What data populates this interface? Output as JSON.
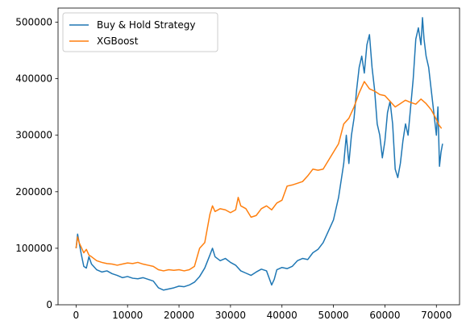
{
  "chart_data": {
    "type": "line",
    "title": "",
    "xlabel": "",
    "ylabel": "",
    "xlim": [
      -3500,
      74500
    ],
    "ylim": [
      0,
      525000
    ],
    "xticks": [
      0,
      10000,
      20000,
      30000,
      40000,
      50000,
      60000,
      70000
    ],
    "xtick_labels": [
      "0",
      "10000",
      "20000",
      "30000",
      "40000",
      "50000",
      "60000",
      "70000"
    ],
    "yticks": [
      0,
      100000,
      200000,
      300000,
      400000,
      500000
    ],
    "ytick_labels": [
      "0",
      "100000",
      "200000",
      "300000",
      "400000",
      "500000"
    ],
    "grid": false,
    "legend_position": "upper-left",
    "series": [
      {
        "name": "Buy & Hold Strategy",
        "color": "#1f77b4",
        "points": [
          [
            0,
            100000
          ],
          [
            300,
            125000
          ],
          [
            600,
            110000
          ],
          [
            1000,
            90000
          ],
          [
            1500,
            68000
          ],
          [
            2000,
            65000
          ],
          [
            2500,
            85000
          ],
          [
            3000,
            72000
          ],
          [
            4000,
            62000
          ],
          [
            5000,
            58000
          ],
          [
            6000,
            60000
          ],
          [
            7000,
            55000
          ],
          [
            8000,
            52000
          ],
          [
            9000,
            48000
          ],
          [
            10000,
            50000
          ],
          [
            11000,
            47000
          ],
          [
            12000,
            46000
          ],
          [
            13000,
            48000
          ],
          [
            14000,
            45000
          ],
          [
            15000,
            42000
          ],
          [
            16000,
            30000
          ],
          [
            17000,
            26000
          ],
          [
            18000,
            28000
          ],
          [
            19000,
            30000
          ],
          [
            20000,
            33000
          ],
          [
            21000,
            32000
          ],
          [
            22000,
            35000
          ],
          [
            23000,
            40000
          ],
          [
            24000,
            50000
          ],
          [
            25000,
            65000
          ],
          [
            26000,
            88000
          ],
          [
            26500,
            100000
          ],
          [
            27000,
            85000
          ],
          [
            28000,
            78000
          ],
          [
            29000,
            82000
          ],
          [
            30000,
            75000
          ],
          [
            31000,
            70000
          ],
          [
            32000,
            60000
          ],
          [
            33000,
            56000
          ],
          [
            34000,
            52000
          ],
          [
            35000,
            58000
          ],
          [
            36000,
            63000
          ],
          [
            37000,
            60000
          ],
          [
            38000,
            35000
          ],
          [
            38500,
            45000
          ],
          [
            39000,
            62000
          ],
          [
            40000,
            66000
          ],
          [
            41000,
            64000
          ],
          [
            42000,
            68000
          ],
          [
            43000,
            78000
          ],
          [
            44000,
            82000
          ],
          [
            45000,
            80000
          ],
          [
            46000,
            92000
          ],
          [
            47000,
            98000
          ],
          [
            48000,
            110000
          ],
          [
            49000,
            130000
          ],
          [
            50000,
            150000
          ],
          [
            51000,
            190000
          ],
          [
            52000,
            250000
          ],
          [
            52500,
            300000
          ],
          [
            53000,
            250000
          ],
          [
            53500,
            300000
          ],
          [
            54000,
            330000
          ],
          [
            54500,
            380000
          ],
          [
            55000,
            420000
          ],
          [
            55500,
            440000
          ],
          [
            56000,
            410000
          ],
          [
            56500,
            460000
          ],
          [
            57000,
            478000
          ],
          [
            57500,
            420000
          ],
          [
            58000,
            380000
          ],
          [
            58500,
            320000
          ],
          [
            59000,
            300000
          ],
          [
            59500,
            260000
          ],
          [
            60000,
            290000
          ],
          [
            60500,
            340000
          ],
          [
            61000,
            360000
          ],
          [
            61500,
            320000
          ],
          [
            62000,
            240000
          ],
          [
            62500,
            225000
          ],
          [
            63000,
            250000
          ],
          [
            63500,
            290000
          ],
          [
            64000,
            320000
          ],
          [
            64500,
            300000
          ],
          [
            65000,
            350000
          ],
          [
            65500,
            400000
          ],
          [
            66000,
            470000
          ],
          [
            66500,
            490000
          ],
          [
            67000,
            460000
          ],
          [
            67300,
            508000
          ],
          [
            67600,
            470000
          ],
          [
            68000,
            440000
          ],
          [
            68500,
            420000
          ],
          [
            69000,
            380000
          ],
          [
            69500,
            340000
          ],
          [
            70000,
            300000
          ],
          [
            70300,
            350000
          ],
          [
            70600,
            245000
          ],
          [
            70900,
            270000
          ],
          [
            71200,
            285000
          ]
        ]
      },
      {
        "name": "XGBoost",
        "color": "#ff7f0e",
        "points": [
          [
            0,
            100000
          ],
          [
            300,
            120000
          ],
          [
            600,
            110000
          ],
          [
            1000,
            102000
          ],
          [
            1500,
            92000
          ],
          [
            2000,
            98000
          ],
          [
            2500,
            88000
          ],
          [
            3000,
            85000
          ],
          [
            4000,
            78000
          ],
          [
            5000,
            75000
          ],
          [
            6000,
            73000
          ],
          [
            7000,
            72000
          ],
          [
            8000,
            70000
          ],
          [
            9000,
            72000
          ],
          [
            10000,
            74000
          ],
          [
            11000,
            73000
          ],
          [
            12000,
            75000
          ],
          [
            13000,
            72000
          ],
          [
            14000,
            70000
          ],
          [
            15000,
            68000
          ],
          [
            16000,
            62000
          ],
          [
            17000,
            60000
          ],
          [
            18000,
            62000
          ],
          [
            19000,
            61000
          ],
          [
            20000,
            62000
          ],
          [
            21000,
            60000
          ],
          [
            22000,
            62000
          ],
          [
            23000,
            68000
          ],
          [
            24000,
            100000
          ],
          [
            25000,
            110000
          ],
          [
            26000,
            160000
          ],
          [
            26500,
            175000
          ],
          [
            27000,
            165000
          ],
          [
            28000,
            170000
          ],
          [
            29000,
            168000
          ],
          [
            30000,
            163000
          ],
          [
            31000,
            168000
          ],
          [
            31500,
            190000
          ],
          [
            32000,
            175000
          ],
          [
            33000,
            170000
          ],
          [
            34000,
            155000
          ],
          [
            35000,
            158000
          ],
          [
            36000,
            170000
          ],
          [
            37000,
            175000
          ],
          [
            38000,
            168000
          ],
          [
            39000,
            180000
          ],
          [
            40000,
            185000
          ],
          [
            41000,
            210000
          ],
          [
            42000,
            212000
          ],
          [
            43000,
            215000
          ],
          [
            44000,
            218000
          ],
          [
            45000,
            228000
          ],
          [
            46000,
            240000
          ],
          [
            47000,
            238000
          ],
          [
            48000,
            240000
          ],
          [
            49000,
            255000
          ],
          [
            50000,
            270000
          ],
          [
            51000,
            285000
          ],
          [
            52000,
            320000
          ],
          [
            53000,
            330000
          ],
          [
            54000,
            350000
          ],
          [
            55000,
            375000
          ],
          [
            56000,
            395000
          ],
          [
            57000,
            382000
          ],
          [
            58000,
            378000
          ],
          [
            59000,
            372000
          ],
          [
            60000,
            370000
          ],
          [
            61000,
            360000
          ],
          [
            62000,
            350000
          ],
          [
            63000,
            356000
          ],
          [
            64000,
            362000
          ],
          [
            65000,
            358000
          ],
          [
            66000,
            355000
          ],
          [
            67000,
            364000
          ],
          [
            68000,
            356000
          ],
          [
            69000,
            345000
          ],
          [
            70000,
            328000
          ],
          [
            70500,
            318000
          ],
          [
            71000,
            312000
          ]
        ]
      }
    ]
  }
}
